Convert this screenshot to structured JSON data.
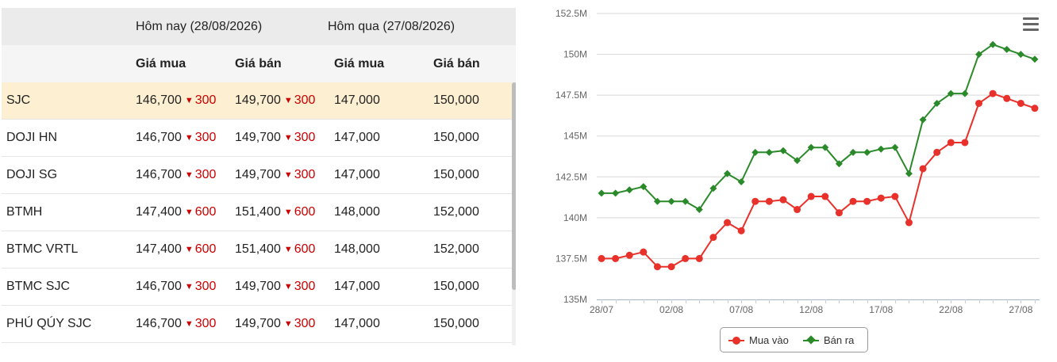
{
  "table": {
    "header_today": "Hôm nay (28/08/2026)",
    "header_yesterday": "Hôm qua (27/08/2026)",
    "col_buy": "Giá mua",
    "col_sell": "Giá bán",
    "rows": [
      {
        "name": "SJC",
        "buy": "146,700",
        "buy_change": "300",
        "sell": "149,700",
        "sell_change": "300",
        "prev_buy": "147,000",
        "prev_sell": "150,000"
      },
      {
        "name": "DOJI HN",
        "buy": "146,700",
        "buy_change": "300",
        "sell": "149,700",
        "sell_change": "300",
        "prev_buy": "147,000",
        "prev_sell": "150,000"
      },
      {
        "name": "DOJI SG",
        "buy": "146,700",
        "buy_change": "300",
        "sell": "149,700",
        "sell_change": "300",
        "prev_buy": "147,000",
        "prev_sell": "150,000"
      },
      {
        "name": "BTMH",
        "buy": "147,400",
        "buy_change": "600",
        "sell": "151,400",
        "sell_change": "600",
        "prev_buy": "148,000",
        "prev_sell": "152,000"
      },
      {
        "name": "BTMC VRTL",
        "buy": "147,400",
        "buy_change": "600",
        "sell": "151,400",
        "sell_change": "600",
        "prev_buy": "148,000",
        "prev_sell": "152,000"
      },
      {
        "name": "BTMC SJC",
        "buy": "146,700",
        "buy_change": "300",
        "sell": "149,700",
        "sell_change": "300",
        "prev_buy": "147,000",
        "prev_sell": "150,000"
      },
      {
        "name": "PHÚ QÚY SJC",
        "buy": "146,700",
        "buy_change": "300",
        "sell": "149,700",
        "sell_change": "300",
        "prev_buy": "147,000",
        "prev_sell": "150,000"
      }
    ],
    "down_color": "#cc0000",
    "highlight_color": "#fdf0d2",
    "down_icon": "triangle-down-icon"
  },
  "chart_data": {
    "type": "line",
    "x": [
      "28/07",
      "29/07",
      "30/07",
      "31/07",
      "01/08",
      "02/08",
      "03/08",
      "04/08",
      "05/08",
      "06/08",
      "07/08",
      "08/08",
      "09/08",
      "10/08",
      "11/08",
      "12/08",
      "13/08",
      "14/08",
      "15/08",
      "16/08",
      "17/08",
      "18/08",
      "19/08",
      "20/08",
      "21/08",
      "22/08",
      "23/08",
      "24/08",
      "25/08",
      "26/08",
      "27/08",
      "28/08"
    ],
    "x_tick_labels": [
      "28/07",
      "02/08",
      "07/08",
      "12/08",
      "17/08",
      "22/08",
      "27/08"
    ],
    "x_tick_indices": [
      0,
      5,
      10,
      15,
      20,
      25,
      30
    ],
    "series": [
      {
        "name": "Mua vào",
        "color": "#e8312a",
        "marker": "circle",
        "values": [
          137.5,
          137.5,
          137.7,
          137.9,
          137.0,
          137.0,
          137.5,
          137.5,
          138.8,
          139.7,
          139.2,
          141.0,
          141.0,
          141.1,
          140.5,
          141.3,
          141.3,
          140.3,
          141.0,
          141.0,
          141.2,
          141.3,
          139.7,
          143.0,
          144.0,
          144.6,
          144.6,
          147.0,
          147.6,
          147.3,
          147.0,
          146.7
        ]
      },
      {
        "name": "Bán ra",
        "color": "#2a8a2a",
        "marker": "diamond",
        "values": [
          141.5,
          141.5,
          141.7,
          141.9,
          141.0,
          141.0,
          141.0,
          140.5,
          141.8,
          142.7,
          142.2,
          144.0,
          144.0,
          144.1,
          143.5,
          144.3,
          144.3,
          143.3,
          144.0,
          144.0,
          144.2,
          144.3,
          142.7,
          146.0,
          147.0,
          147.6,
          147.6,
          150.0,
          150.6,
          150.3,
          150.0,
          149.7
        ]
      }
    ],
    "y_ticks": [
      "135M",
      "137.5M",
      "140M",
      "142.5M",
      "145M",
      "147.5M",
      "150M",
      "152.5M"
    ],
    "y_tick_values": [
      135,
      137.5,
      140,
      142.5,
      145,
      147.5,
      150,
      152.5
    ],
    "ylim": [
      135,
      152.5
    ],
    "grid": "horizontal",
    "legend_placement": "bottom-center",
    "menu_icon": "hamburger-menu-icon"
  }
}
